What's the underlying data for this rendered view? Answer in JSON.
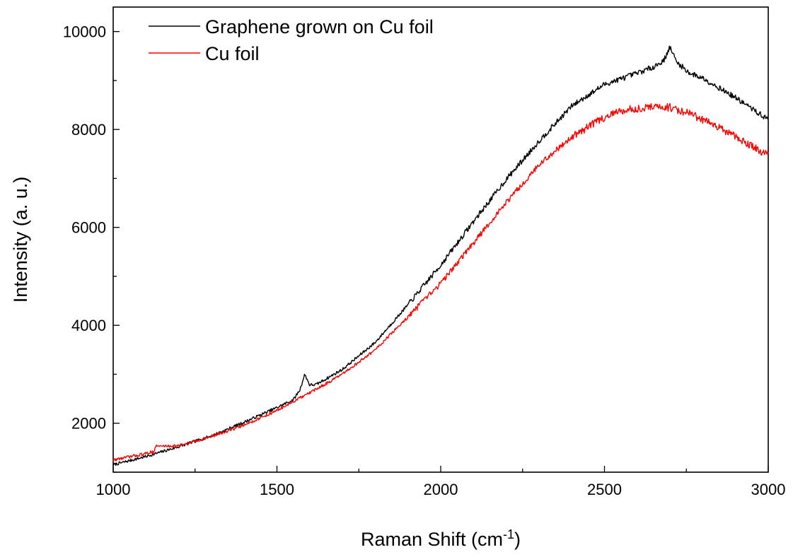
{
  "chart_data": {
    "type": "line",
    "xlabel": "Raman Shift (cm",
    "xlabel_sup": "-1",
    "xlabel_end": ")",
    "ylabel": "Intensity (a. u.)",
    "xlim": [
      1000,
      3000
    ],
    "ylim": [
      1000,
      10500
    ],
    "x_ticks": [
      1000,
      1500,
      2000,
      2500,
      3000
    ],
    "y_ticks": [
      2000,
      4000,
      6000,
      8000,
      10000
    ],
    "grid": false,
    "legend_position": "top-left",
    "series": [
      {
        "name": "Graphene grown on Cu foil",
        "color": "#000000",
        "x": [
          1000,
          1100,
          1200,
          1300,
          1400,
          1500,
          1550,
          1570,
          1585,
          1600,
          1620,
          1700,
          1800,
          1900,
          2000,
          2100,
          2200,
          2300,
          2400,
          2500,
          2600,
          2650,
          2680,
          2700,
          2720,
          2760,
          2800,
          2900,
          3000
        ],
        "y": [
          1150,
          1320,
          1520,
          1740,
          2020,
          2320,
          2480,
          2680,
          3000,
          2780,
          2790,
          3100,
          3650,
          4420,
          5230,
          6120,
          6980,
          7760,
          8480,
          8920,
          9150,
          9280,
          9400,
          9680,
          9380,
          9150,
          9050,
          8650,
          8200
        ]
      },
      {
        "name": "Cu foil",
        "color": "#ff0000",
        "x": [
          1000,
          1100,
          1125,
          1130,
          1200,
          1300,
          1400,
          1500,
          1600,
          1700,
          1800,
          1900,
          2000,
          2100,
          2200,
          2300,
          2400,
          2500,
          2550,
          2600,
          2650,
          2700,
          2750,
          2800,
          2900,
          3000
        ],
        "y": [
          1250,
          1380,
          1430,
          1530,
          1540,
          1730,
          1960,
          2260,
          2620,
          3000,
          3500,
          4170,
          4860,
          5680,
          6510,
          7280,
          7850,
          8250,
          8380,
          8430,
          8460,
          8450,
          8350,
          8200,
          7850,
          7480
        ]
      }
    ]
  }
}
